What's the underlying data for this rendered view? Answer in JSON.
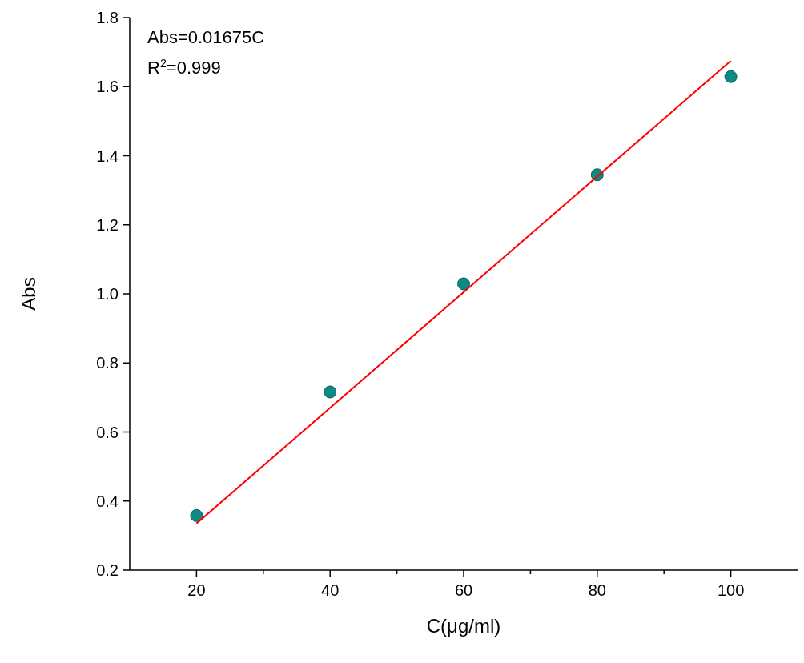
{
  "chart_data": {
    "type": "scatter",
    "xlabel": "C(μg/ml)",
    "ylabel": "Abs",
    "annotations": [
      "Abs=0.01675C",
      "R$^{2}$=0.999"
    ],
    "xlim": [
      10,
      110
    ],
    "ylim": [
      0.2,
      1.8
    ],
    "xticks": [
      20,
      {
        "value": 30,
        "label": null
      },
      40,
      {
        "value": 50,
        "label": null
      },
      60,
      {
        "value": 70,
        "label": null
      },
      80,
      {
        "value": 90,
        "label": null
      },
      100
    ],
    "yticks": [
      0.2,
      0.4,
      0.6,
      0.8,
      {
        "value": 1,
        "label": "1.0"
      },
      1.2,
      1.4,
      1.6,
      1.8
    ],
    "x": [
      20,
      40,
      60,
      80,
      100
    ],
    "series": [
      {
        "color": "#0e8a86",
        "marker": "circle",
        "values": [
          0.358,
          0.716,
          1.029,
          1.345,
          1.629
        ]
      },
      {
        "type": "line",
        "color": "#ff0000",
        "line_style": "solid",
        "x": [
          20,
          100
        ],
        "values": [
          0.335,
          1.675
        ]
      }
    ]
  }
}
